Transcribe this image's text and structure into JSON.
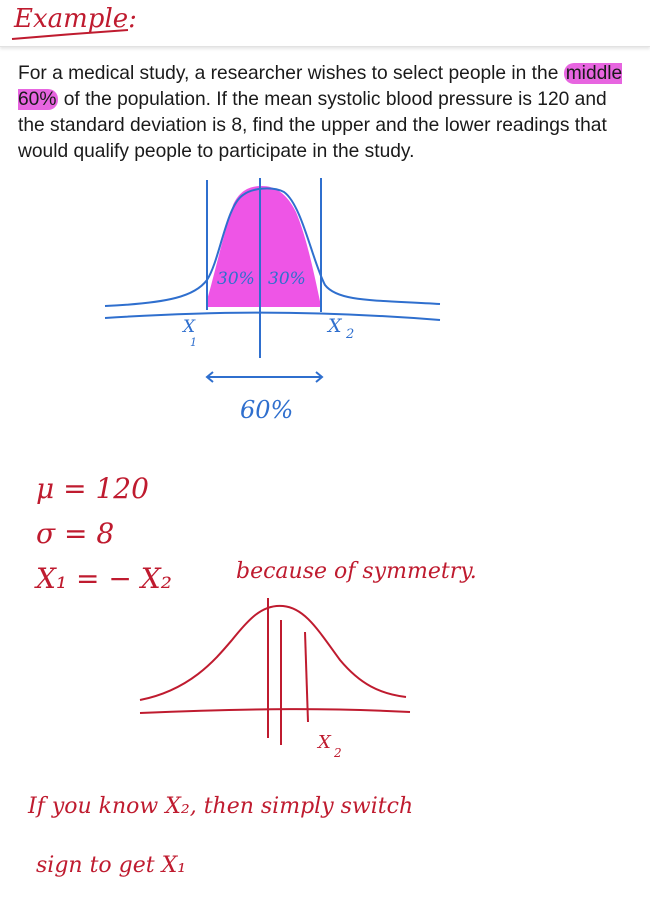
{
  "header": {
    "title": "Example:"
  },
  "problem": {
    "before": "For a medical study, a researcher wishes to select people in the ",
    "highlight": "middle 60%",
    "after": " of the population. If the mean systolic blood pressure is 120 and the standard deviation is 8, find the upper and the lower readings that would qualify people to participate in the study."
  },
  "diagram_top": {
    "left_area": "30%",
    "right_area": "30%",
    "total": "60%",
    "x1": "X",
    "x1_sub": "1",
    "x2": "X",
    "x2_sub": "2"
  },
  "notes": {
    "mu": "μ = 120",
    "sigma": "σ = 8",
    "relation": "X₁ = − X₂",
    "because": "because of symmetry.",
    "bottom_x2": "X",
    "bottom_x2_sub": "2",
    "line1": "If you know X₂, then simply switch",
    "line2": "sign to get X₁"
  },
  "colors": {
    "pen_blue": "#2f6fce",
    "pen_red": "#bf1b2f",
    "highlight_magenta": "#e765e0",
    "fill_magenta": "#ee55e6"
  }
}
